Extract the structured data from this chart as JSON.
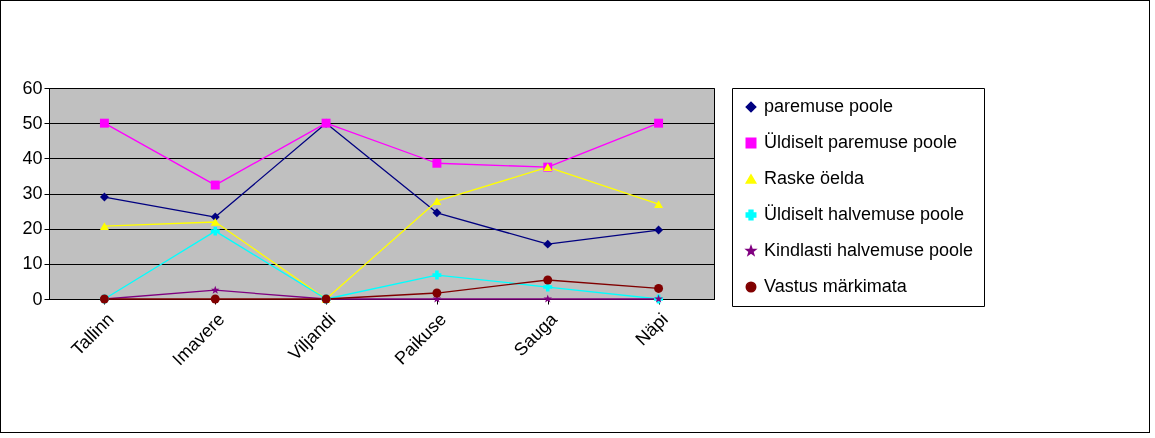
{
  "chart_data": {
    "type": "line",
    "categories": [
      "Tallinn",
      "Imavere",
      "Viljandi",
      "Paikuse",
      "Sauga",
      "Näpi"
    ],
    "series": [
      {
        "name": "paremuse poole",
        "color": "#000080",
        "marker": "diamond",
        "values": [
          29,
          23.3,
          50,
          24.5,
          15.6,
          19.6
        ]
      },
      {
        "name": "Üldiselt paremuse poole",
        "color": "#ff00ff",
        "marker": "square",
        "values": [
          50,
          32.4,
          50,
          38.6,
          37.5,
          50
        ]
      },
      {
        "name": "Raske öelda",
        "color": "#ffff00",
        "marker": "triangle",
        "values": [
          20.7,
          21.9,
          0,
          27.8,
          37.5,
          27
        ]
      },
      {
        "name": "Üldiselt halvemuse poole",
        "color": "#00ffff",
        "marker": "cross",
        "values": [
          0,
          19.3,
          0,
          6.8,
          3.4,
          0
        ]
      },
      {
        "name": "Kindlasti halvemuse poole",
        "color": "#800080",
        "marker": "star",
        "values": [
          0,
          2.5,
          0,
          0,
          0,
          0
        ]
      },
      {
        "name": "Vastus märkimata",
        "color": "#800000",
        "marker": "circle",
        "values": [
          0,
          0,
          0,
          1.7,
          5.4,
          3
        ]
      }
    ],
    "ylim": [
      0,
      60
    ],
    "yticks": [
      0,
      10,
      20,
      30,
      40,
      50,
      60
    ],
    "grid": "y",
    "legend": "right"
  }
}
